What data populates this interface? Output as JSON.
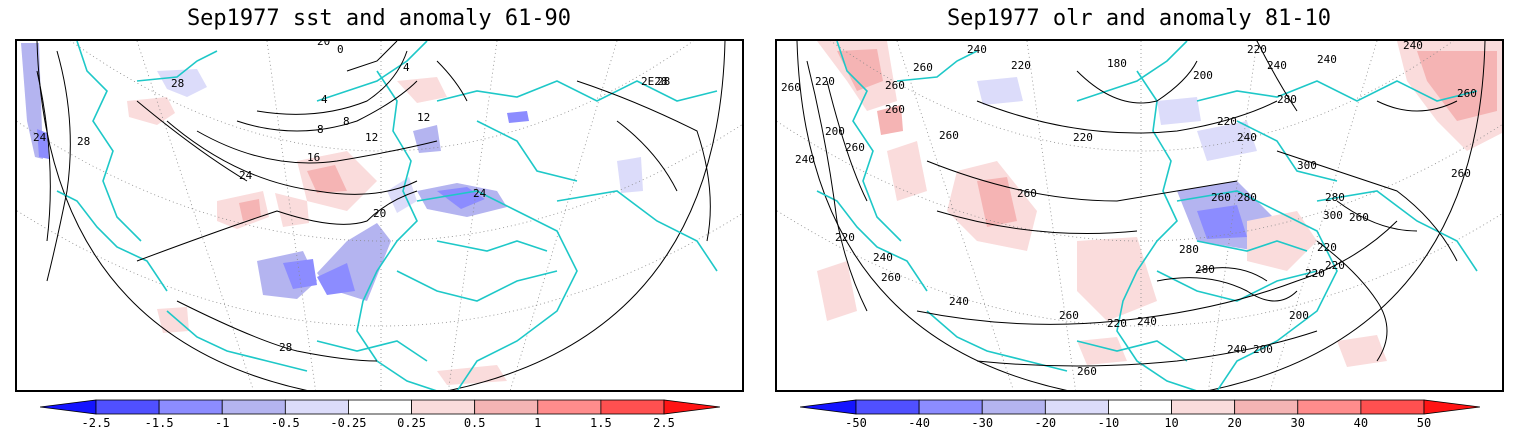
{
  "panels": [
    {
      "title": "Sep1977 sst and anomaly 61-90",
      "colorbar": {
        "labels": [
          "-2.5",
          "-1.5",
          "-1",
          "-0.5",
          "-0.25",
          "0.25",
          "0.5",
          "1",
          "1.5",
          "2.5"
        ],
        "colors": [
          "#1414ff",
          "#5050ff",
          "#8c8cff",
          "#b4b4f0",
          "#dcdcfa",
          "#ffffff",
          "#fadcdc",
          "#f5b4b4",
          "#ff8c8c",
          "#ff5050",
          "#ff1414"
        ]
      },
      "contour_labels": [
        "28",
        "24",
        "28",
        "4",
        "8",
        "8",
        "12",
        "12",
        "16",
        "24",
        "20",
        "24",
        "28",
        "28",
        "2E28",
        "0",
        "4",
        "20"
      ]
    },
    {
      "title": "Sep1977 olr and anomaly 81-10",
      "colorbar": {
        "labels": [
          "-50",
          "-40",
          "-30",
          "-20",
          "-10",
          "10",
          "20",
          "30",
          "40",
          "50"
        ],
        "colors": [
          "#1414ff",
          "#5050ff",
          "#8c8cff",
          "#b4b4f0",
          "#dcdcfa",
          "#ffffff",
          "#fadcdc",
          "#f5b4b4",
          "#ff8c8c",
          "#ff5050",
          "#ff1414"
        ]
      },
      "contour_labels": [
        "240",
        "260",
        "220",
        "260",
        "220",
        "180",
        "200",
        "260",
        "220",
        "240",
        "280",
        "240",
        "240",
        "260",
        "200",
        "260",
        "260",
        "220",
        "240",
        "220",
        "260",
        "240",
        "300",
        "260",
        "280",
        "260",
        "300",
        "260",
        "280",
        "260",
        "220",
        "240",
        "280",
        "280",
        "220",
        "260",
        "240",
        "220",
        "220",
        "200",
        "240",
        "260",
        "260",
        "200",
        "240",
        "220"
      ]
    }
  ]
}
